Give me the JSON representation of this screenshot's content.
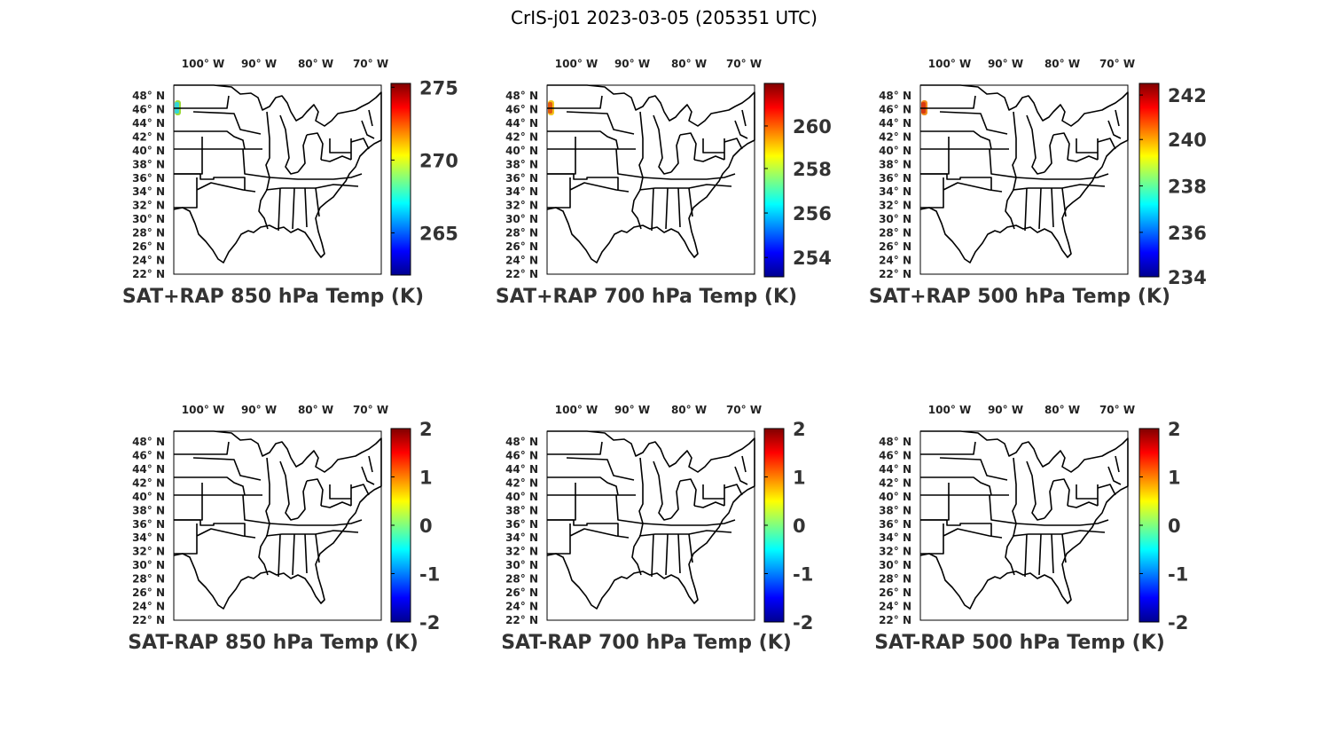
{
  "figure": {
    "title": "CrIS-j01 2023-03-05 (205351 UTC)"
  },
  "map": {
    "lon_ticks": [
      "100° W",
      "90° W",
      "80° W",
      "70° W"
    ],
    "lat_ticks": [
      "48° N",
      "46° N",
      "44° N",
      "42° N",
      "40° N",
      "38° N",
      "36° N",
      "34° N",
      "32° N",
      "30° N",
      "28° N",
      "26° N",
      "24° N",
      "22° N"
    ]
  },
  "panels": [
    {
      "id": "sat-rap-850",
      "caption": "SAT+RAP 850 hPa Temp (K)",
      "colorbar_ticks": [
        "275",
        "270",
        "265"
      ],
      "colorbar_tick_fracs": [
        0.98,
        0.6,
        0.22
      ],
      "colormap": "jet",
      "data_spot": {
        "color": "#33d6d6",
        "edge": "#9cd93b"
      }
    },
    {
      "id": "sat-rap-700",
      "caption": "SAT+RAP 700 hPa Temp (K)",
      "colorbar_ticks": [
        "260",
        "258",
        "256",
        "254"
      ],
      "colorbar_tick_fracs": [
        0.78,
        0.56,
        0.33,
        0.1
      ],
      "colormap": "jet",
      "data_spot": {
        "color": "#e25b10",
        "edge": "#f2c51d"
      }
    },
    {
      "id": "sat-rap-500",
      "caption": "SAT+RAP 500 hPa Temp (K)",
      "colorbar_ticks": [
        "242",
        "240",
        "238",
        "236",
        "234"
      ],
      "colorbar_tick_fracs": [
        0.94,
        0.71,
        0.47,
        0.23,
        0.0
      ],
      "colormap": "jet",
      "data_spot": {
        "color": "#d83a12",
        "edge": "#f08a1c"
      }
    },
    {
      "id": "sat-minus-rap-850",
      "caption": "SAT-RAP 850 hPa Temp (K)",
      "colorbar_ticks": [
        "2",
        "1",
        "0",
        "-1",
        "-2"
      ],
      "colorbar_tick_fracs": [
        1.0,
        0.75,
        0.5,
        0.25,
        0.0
      ],
      "colormap": "jet",
      "data_spot": null
    },
    {
      "id": "sat-minus-rap-700",
      "caption": "SAT-RAP 700 hPa Temp (K)",
      "colorbar_ticks": [
        "2",
        "1",
        "0",
        "-1",
        "-2"
      ],
      "colorbar_tick_fracs": [
        1.0,
        0.75,
        0.5,
        0.25,
        0.0
      ],
      "colormap": "jet",
      "data_spot": null
    },
    {
      "id": "sat-minus-rap-500",
      "caption": "SAT-RAP 500 hPa Temp (K)",
      "colorbar_ticks": [
        "2",
        "1",
        "0",
        "-1",
        "-2"
      ],
      "colorbar_tick_fracs": [
        1.0,
        0.75,
        0.5,
        0.25,
        0.0
      ],
      "colormap": "jet",
      "data_spot": null
    }
  ]
}
